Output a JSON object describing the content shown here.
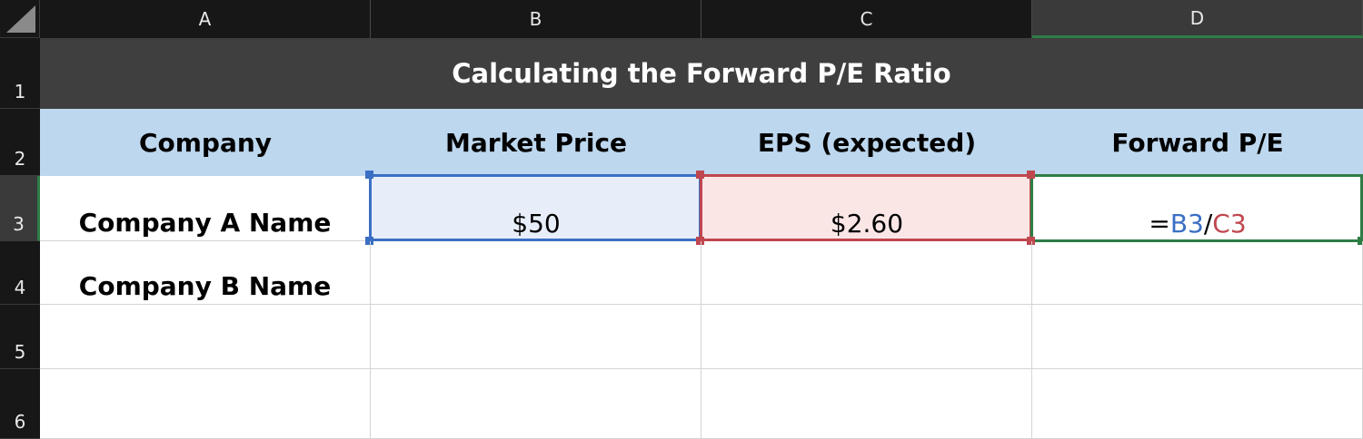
{
  "columns": [
    "A",
    "B",
    "C",
    "D"
  ],
  "rows": [
    "1",
    "2",
    "3",
    "4",
    "5",
    "6"
  ],
  "title": "Calculating the Forward P/E Ratio",
  "headers": [
    "Company",
    "Market Price",
    "EPS (expected)",
    "Forward P/E"
  ],
  "row3": {
    "company": "Company A Name",
    "price": "$50",
    "eps": "$2.60",
    "formula": {
      "eq": "=",
      "ref1": "B3",
      "slash": "/",
      "ref2": "C3"
    }
  },
  "row4": {
    "company": "Company B Name"
  },
  "colors": {
    "title_bg": "#3f3f3f",
    "header_bg": "#bdd7ee",
    "ref_b_color": "#3a6fc4",
    "ref_c_color": "#c0474f",
    "active_color": "#2e7d46"
  }
}
